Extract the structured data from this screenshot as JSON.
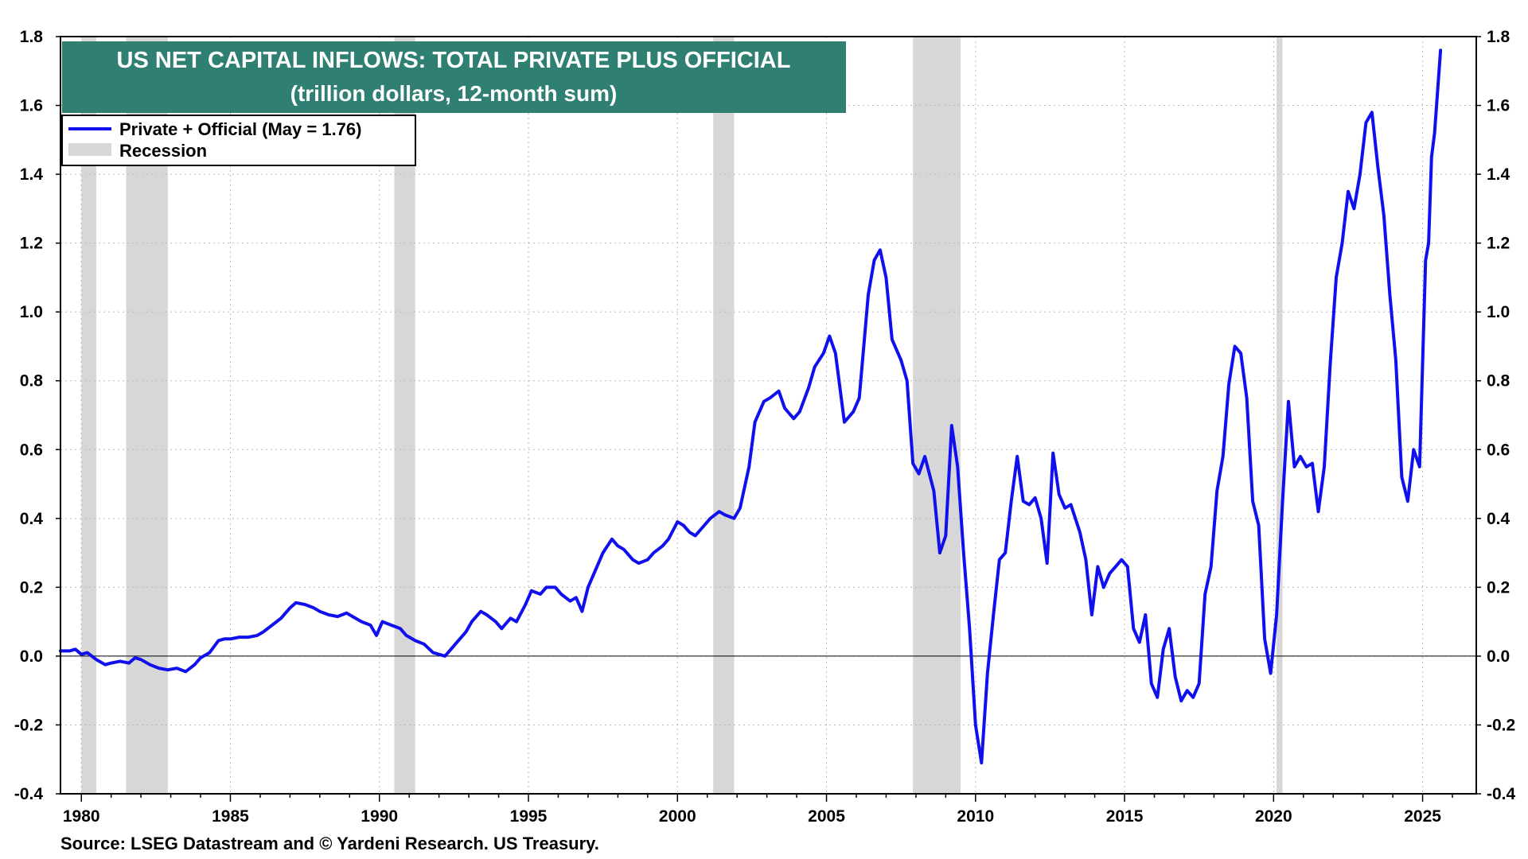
{
  "chart_data": {
    "type": "line",
    "title": "US NET CAPITAL INFLOWS: TOTAL PRIVATE PLUS OFFICIAL",
    "subtitle": "(trillion dollars, 12-month sum)",
    "source": "Source: LSEG Datastream and © Yardeni Research. US Treasury.",
    "xlim": [
      1979.3,
      2026.8
    ],
    "ylim": [
      -0.4,
      1.8
    ],
    "y_ticks": [
      "1.8",
      "1.6",
      "1.4",
      "1.2",
      "1.0",
      "0.8",
      "0.6",
      "0.4",
      "0.2",
      "0.0",
      "-0.2",
      "-0.4"
    ],
    "y_tick_values": [
      1.8,
      1.6,
      1.4,
      1.2,
      1.0,
      0.8,
      0.6,
      0.4,
      0.2,
      0.0,
      -0.2,
      -0.4
    ],
    "x_ticks": [
      "1980",
      "1985",
      "1990",
      "1995",
      "2000",
      "2005",
      "2010",
      "2015",
      "2020",
      "2025"
    ],
    "x_tick_values": [
      1980,
      1985,
      1990,
      1995,
      2000,
      2005,
      2010,
      2015,
      2020,
      2025
    ],
    "grid": true,
    "legend": {
      "position": "top-left",
      "entries": [
        {
          "label": "Private + Official (May = 1.76)",
          "type": "line",
          "color": "#1010ee"
        },
        {
          "label": "Recession",
          "type": "area",
          "color": "#d7d7d7"
        }
      ]
    },
    "recessions": [
      [
        1980.0,
        1980.5
      ],
      [
        1981.5,
        1982.9
      ],
      [
        1990.5,
        1991.2
      ],
      [
        2001.2,
        2001.9
      ],
      [
        2007.9,
        2009.5
      ],
      [
        2020.1,
        2020.3
      ]
    ],
    "series": [
      {
        "name": "Private + Official",
        "color": "#1010ee",
        "points": [
          [
            1979.3,
            0.015
          ],
          [
            1979.6,
            0.015
          ],
          [
            1979.8,
            0.02
          ],
          [
            1980.0,
            0.005
          ],
          [
            1980.2,
            0.01
          ],
          [
            1980.5,
            -0.01
          ],
          [
            1980.8,
            -0.025
          ],
          [
            1981.0,
            -0.02
          ],
          [
            1981.3,
            -0.015
          ],
          [
            1981.6,
            -0.02
          ],
          [
            1981.8,
            -0.005
          ],
          [
            1982.0,
            -0.01
          ],
          [
            1982.3,
            -0.025
          ],
          [
            1982.6,
            -0.035
          ],
          [
            1982.9,
            -0.04
          ],
          [
            1983.2,
            -0.035
          ],
          [
            1983.5,
            -0.045
          ],
          [
            1983.8,
            -0.025
          ],
          [
            1984.0,
            -0.005
          ],
          [
            1984.3,
            0.01
          ],
          [
            1984.6,
            0.045
          ],
          [
            1984.8,
            0.05
          ],
          [
            1985.0,
            0.05
          ],
          [
            1985.3,
            0.055
          ],
          [
            1985.6,
            0.055
          ],
          [
            1985.9,
            0.06
          ],
          [
            1986.1,
            0.07
          ],
          [
            1986.4,
            0.09
          ],
          [
            1986.7,
            0.11
          ],
          [
            1987.0,
            0.14
          ],
          [
            1987.2,
            0.155
          ],
          [
            1987.5,
            0.15
          ],
          [
            1987.8,
            0.14
          ],
          [
            1988.0,
            0.13
          ],
          [
            1988.3,
            0.12
          ],
          [
            1988.6,
            0.115
          ],
          [
            1988.9,
            0.125
          ],
          [
            1989.1,
            0.115
          ],
          [
            1989.4,
            0.1
          ],
          [
            1989.7,
            0.09
          ],
          [
            1989.9,
            0.06
          ],
          [
            1990.1,
            0.1
          ],
          [
            1990.4,
            0.09
          ],
          [
            1990.7,
            0.08
          ],
          [
            1990.9,
            0.06
          ],
          [
            1991.2,
            0.045
          ],
          [
            1991.5,
            0.035
          ],
          [
            1991.8,
            0.01
          ],
          [
            1992.0,
            0.005
          ],
          [
            1992.2,
            0.0
          ],
          [
            1992.4,
            0.02
          ],
          [
            1992.6,
            0.04
          ],
          [
            1992.9,
            0.07
          ],
          [
            1993.1,
            0.1
          ],
          [
            1993.4,
            0.13
          ],
          [
            1993.6,
            0.12
          ],
          [
            1993.9,
            0.1
          ],
          [
            1994.1,
            0.08
          ],
          [
            1994.4,
            0.11
          ],
          [
            1994.6,
            0.1
          ],
          [
            1994.9,
            0.15
          ],
          [
            1995.1,
            0.19
          ],
          [
            1995.4,
            0.18
          ],
          [
            1995.6,
            0.2
          ],
          [
            1995.9,
            0.2
          ],
          [
            1996.1,
            0.18
          ],
          [
            1996.4,
            0.16
          ],
          [
            1996.6,
            0.17
          ],
          [
            1996.8,
            0.13
          ],
          [
            1997.0,
            0.2
          ],
          [
            1997.3,
            0.26
          ],
          [
            1997.5,
            0.3
          ],
          [
            1997.8,
            0.34
          ],
          [
            1998.0,
            0.32
          ],
          [
            1998.2,
            0.31
          ],
          [
            1998.5,
            0.28
          ],
          [
            1998.7,
            0.27
          ],
          [
            1999.0,
            0.28
          ],
          [
            1999.2,
            0.3
          ],
          [
            1999.5,
            0.32
          ],
          [
            1999.7,
            0.34
          ],
          [
            2000.0,
            0.39
          ],
          [
            2000.2,
            0.38
          ],
          [
            2000.4,
            0.36
          ],
          [
            2000.6,
            0.35
          ],
          [
            2000.9,
            0.38
          ],
          [
            2001.1,
            0.4
          ],
          [
            2001.4,
            0.42
          ],
          [
            2001.6,
            0.41
          ],
          [
            2001.9,
            0.4
          ],
          [
            2002.1,
            0.43
          ],
          [
            2002.4,
            0.55
          ],
          [
            2002.6,
            0.68
          ],
          [
            2002.9,
            0.74
          ],
          [
            2003.1,
            0.75
          ],
          [
            2003.4,
            0.77
          ],
          [
            2003.6,
            0.72
          ],
          [
            2003.9,
            0.69
          ],
          [
            2004.1,
            0.71
          ],
          [
            2004.4,
            0.78
          ],
          [
            2004.6,
            0.84
          ],
          [
            2004.9,
            0.88
          ],
          [
            2005.1,
            0.93
          ],
          [
            2005.3,
            0.88
          ],
          [
            2005.6,
            0.68
          ],
          [
            2005.9,
            0.71
          ],
          [
            2006.1,
            0.75
          ],
          [
            2006.4,
            1.05
          ],
          [
            2006.6,
            1.15
          ],
          [
            2006.8,
            1.18
          ],
          [
            2007.0,
            1.1
          ],
          [
            2007.2,
            0.92
          ],
          [
            2007.5,
            0.86
          ],
          [
            2007.7,
            0.8
          ],
          [
            2007.9,
            0.56
          ],
          [
            2008.1,
            0.53
          ],
          [
            2008.3,
            0.58
          ],
          [
            2008.6,
            0.48
          ],
          [
            2008.8,
            0.3
          ],
          [
            2009.0,
            0.35
          ],
          [
            2009.2,
            0.67
          ],
          [
            2009.4,
            0.55
          ],
          [
            2009.6,
            0.3
          ],
          [
            2009.8,
            0.08
          ],
          [
            2010.0,
            -0.2
          ],
          [
            2010.2,
            -0.31
          ],
          [
            2010.4,
            -0.05
          ],
          [
            2010.6,
            0.12
          ],
          [
            2010.8,
            0.28
          ],
          [
            2011.0,
            0.3
          ],
          [
            2011.2,
            0.45
          ],
          [
            2011.4,
            0.58
          ],
          [
            2011.6,
            0.45
          ],
          [
            2011.8,
            0.44
          ],
          [
            2012.0,
            0.46
          ],
          [
            2012.2,
            0.4
          ],
          [
            2012.4,
            0.27
          ],
          [
            2012.6,
            0.59
          ],
          [
            2012.8,
            0.47
          ],
          [
            2013.0,
            0.43
          ],
          [
            2013.2,
            0.44
          ],
          [
            2013.5,
            0.36
          ],
          [
            2013.7,
            0.28
          ],
          [
            2013.9,
            0.12
          ],
          [
            2014.1,
            0.26
          ],
          [
            2014.3,
            0.2
          ],
          [
            2014.5,
            0.24
          ],
          [
            2014.7,
            0.26
          ],
          [
            2014.9,
            0.28
          ],
          [
            2015.1,
            0.26
          ],
          [
            2015.3,
            0.08
          ],
          [
            2015.5,
            0.04
          ],
          [
            2015.7,
            0.12
          ],
          [
            2015.9,
            -0.08
          ],
          [
            2016.1,
            -0.12
          ],
          [
            2016.3,
            0.02
          ],
          [
            2016.5,
            0.08
          ],
          [
            2016.7,
            -0.06
          ],
          [
            2016.9,
            -0.13
          ],
          [
            2017.1,
            -0.1
          ],
          [
            2017.3,
            -0.12
          ],
          [
            2017.5,
            -0.08
          ],
          [
            2017.7,
            0.18
          ],
          [
            2017.9,
            0.26
          ],
          [
            2018.1,
            0.48
          ],
          [
            2018.3,
            0.58
          ],
          [
            2018.5,
            0.79
          ],
          [
            2018.7,
            0.9
          ],
          [
            2018.9,
            0.88
          ],
          [
            2019.1,
            0.75
          ],
          [
            2019.3,
            0.45
          ],
          [
            2019.5,
            0.38
          ],
          [
            2019.7,
            0.05
          ],
          [
            2019.9,
            -0.05
          ],
          [
            2020.1,
            0.12
          ],
          [
            2020.3,
            0.45
          ],
          [
            2020.5,
            0.74
          ],
          [
            2020.7,
            0.55
          ],
          [
            2020.9,
            0.58
          ],
          [
            2021.1,
            0.55
          ],
          [
            2021.3,
            0.56
          ],
          [
            2021.5,
            0.42
          ],
          [
            2021.7,
            0.55
          ],
          [
            2021.9,
            0.85
          ],
          [
            2022.1,
            1.1
          ],
          [
            2022.3,
            1.2
          ],
          [
            2022.5,
            1.35
          ],
          [
            2022.7,
            1.3
          ],
          [
            2022.9,
            1.4
          ],
          [
            2023.1,
            1.55
          ],
          [
            2023.3,
            1.58
          ],
          [
            2023.5,
            1.42
          ],
          [
            2023.7,
            1.28
          ],
          [
            2023.9,
            1.05
          ],
          [
            2024.1,
            0.86
          ],
          [
            2024.3,
            0.52
          ],
          [
            2024.5,
            0.45
          ],
          [
            2024.7,
            0.6
          ],
          [
            2024.9,
            0.55
          ],
          [
            2025.1,
            1.15
          ],
          [
            2025.2,
            1.2
          ],
          [
            2025.3,
            1.45
          ],
          [
            2025.4,
            1.52
          ],
          [
            2025.6,
            1.76
          ]
        ]
      }
    ]
  }
}
